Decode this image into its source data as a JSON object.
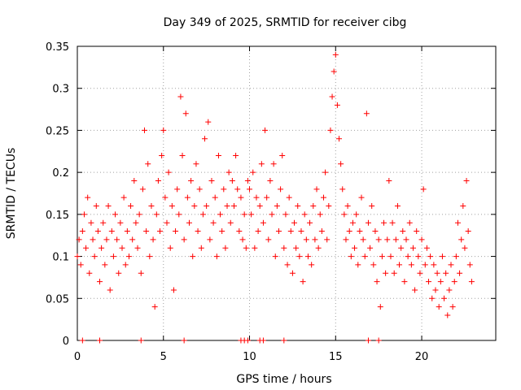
{
  "chart_data": {
    "type": "scatter",
    "title": "Day 349 of 2025, SRMTID for receiver cibg",
    "xlabel": "GPS time / hours",
    "ylabel": "SRMTID / TECUs",
    "xlim": [
      0,
      24.3
    ],
    "ylim": [
      0,
      0.35
    ],
    "grid": true,
    "x_ticks": [
      0,
      5,
      10,
      15,
      20
    ],
    "y_ticks": [
      0,
      0.05,
      0.1,
      0.15,
      0.2,
      0.25,
      0.3,
      0.35
    ],
    "x_tick_labels": [
      "0",
      "5",
      "10",
      "15",
      "20"
    ],
    "y_tick_labels": [
      "0",
      "0.05",
      "0.1",
      "0.15",
      "0.2",
      "0.25",
      "0.3",
      "0.35"
    ],
    "marker": "+",
    "color": "#ff0000",
    "series": [
      {
        "name": "SRMTID",
        "points": [
          [
            0.0,
            0.1
          ],
          [
            0.1,
            0.12
          ],
          [
            0.2,
            0.09
          ],
          [
            0.3,
            0.13
          ],
          [
            0.4,
            0.15
          ],
          [
            0.5,
            0.11
          ],
          [
            0.6,
            0.17
          ],
          [
            0.7,
            0.08
          ],
          [
            0.8,
            0.14
          ],
          [
            0.9,
            0.12
          ],
          [
            1.0,
            0.1
          ],
          [
            1.1,
            0.16
          ],
          [
            1.2,
            0.13
          ],
          [
            1.3,
            0.07
          ],
          [
            1.4,
            0.11
          ],
          [
            1.5,
            0.14
          ],
          [
            1.6,
            0.09
          ],
          [
            1.7,
            0.12
          ],
          [
            1.8,
            0.16
          ],
          [
            1.9,
            0.06
          ],
          [
            2.0,
            0.13
          ],
          [
            2.1,
            0.1
          ],
          [
            2.2,
            0.15
          ],
          [
            2.3,
            0.12
          ],
          [
            2.4,
            0.08
          ],
          [
            2.5,
            0.14
          ],
          [
            2.6,
            0.11
          ],
          [
            2.7,
            0.17
          ],
          [
            2.8,
            0.09
          ],
          [
            2.9,
            0.13
          ],
          [
            3.0,
            0.1
          ],
          [
            3.1,
            0.16
          ],
          [
            3.2,
            0.12
          ],
          [
            3.3,
            0.19
          ],
          [
            3.4,
            0.14
          ],
          [
            3.5,
            0.11
          ],
          [
            3.6,
            0.15
          ],
          [
            3.7,
            0.08
          ],
          [
            3.8,
            0.18
          ],
          [
            3.9,
            0.25
          ],
          [
            4.0,
            0.13
          ],
          [
            4.1,
            0.21
          ],
          [
            4.2,
            0.1
          ],
          [
            4.3,
            0.16
          ],
          [
            4.4,
            0.12
          ],
          [
            4.5,
            0.04
          ],
          [
            4.6,
            0.15
          ],
          [
            4.7,
            0.19
          ],
          [
            4.8,
            0.13
          ],
          [
            4.9,
            0.22
          ],
          [
            5.0,
            0.25
          ],
          [
            5.1,
            0.17
          ],
          [
            5.2,
            0.14
          ],
          [
            5.3,
            0.2
          ],
          [
            5.4,
            0.11
          ],
          [
            5.5,
            0.16
          ],
          [
            5.6,
            0.06
          ],
          [
            5.7,
            0.13
          ],
          [
            5.8,
            0.18
          ],
          [
            5.9,
            0.15
          ],
          [
            6.0,
            0.29
          ],
          [
            6.1,
            0.22
          ],
          [
            6.2,
            0.12
          ],
          [
            6.3,
            0.27
          ],
          [
            6.4,
            0.17
          ],
          [
            6.5,
            0.14
          ],
          [
            6.6,
            0.19
          ],
          [
            6.7,
            0.1
          ],
          [
            6.8,
            0.16
          ],
          [
            6.9,
            0.21
          ],
          [
            7.0,
            0.13
          ],
          [
            7.1,
            0.18
          ],
          [
            7.2,
            0.11
          ],
          [
            7.3,
            0.15
          ],
          [
            7.4,
            0.24
          ],
          [
            7.5,
            0.16
          ],
          [
            7.6,
            0.26
          ],
          [
            7.7,
            0.12
          ],
          [
            7.8,
            0.19
          ],
          [
            7.9,
            0.14
          ],
          [
            8.0,
            0.17
          ],
          [
            8.1,
            0.1
          ],
          [
            8.2,
            0.22
          ],
          [
            8.3,
            0.15
          ],
          [
            8.4,
            0.13
          ],
          [
            8.5,
            0.18
          ],
          [
            8.6,
            0.11
          ],
          [
            8.7,
            0.16
          ],
          [
            8.8,
            0.2
          ],
          [
            8.9,
            0.14
          ],
          [
            9.0,
            0.19
          ],
          [
            9.1,
            0.16
          ],
          [
            9.2,
            0.22
          ],
          [
            9.3,
            0.18
          ],
          [
            9.4,
            0.13
          ],
          [
            9.5,
            0.17
          ],
          [
            9.6,
            0.12
          ],
          [
            9.7,
            0.15
          ],
          [
            9.8,
            0.11
          ],
          [
            9.9,
            0.19
          ],
          [
            10.0,
            0.18
          ],
          [
            10.1,
            0.15
          ],
          [
            10.2,
            0.2
          ],
          [
            10.3,
            0.11
          ],
          [
            10.4,
            0.17
          ],
          [
            10.5,
            0.13
          ],
          [
            10.6,
            0.16
          ],
          [
            10.7,
            0.21
          ],
          [
            10.8,
            0.14
          ],
          [
            10.9,
            0.25
          ],
          [
            11.0,
            0.17
          ],
          [
            11.1,
            0.12
          ],
          [
            11.2,
            0.19
          ],
          [
            11.3,
            0.15
          ],
          [
            11.4,
            0.21
          ],
          [
            11.5,
            0.1
          ],
          [
            11.6,
            0.16
          ],
          [
            11.7,
            0.13
          ],
          [
            11.8,
            0.18
          ],
          [
            11.9,
            0.22
          ],
          [
            12.0,
            0.11
          ],
          [
            12.1,
            0.15
          ],
          [
            12.2,
            0.09
          ],
          [
            12.3,
            0.17
          ],
          [
            12.4,
            0.13
          ],
          [
            12.5,
            0.08
          ],
          [
            12.6,
            0.14
          ],
          [
            12.7,
            0.11
          ],
          [
            12.8,
            0.16
          ],
          [
            12.9,
            0.1
          ],
          [
            13.0,
            0.13
          ],
          [
            13.1,
            0.07
          ],
          [
            13.2,
            0.15
          ],
          [
            13.3,
            0.12
          ],
          [
            13.4,
            0.1
          ],
          [
            13.5,
            0.14
          ],
          [
            13.6,
            0.09
          ],
          [
            13.7,
            0.16
          ],
          [
            13.8,
            0.12
          ],
          [
            13.9,
            0.18
          ],
          [
            14.0,
            0.11
          ],
          [
            14.1,
            0.15
          ],
          [
            14.2,
            0.13
          ],
          [
            14.3,
            0.17
          ],
          [
            14.4,
            0.2
          ],
          [
            14.5,
            0.12
          ],
          [
            14.6,
            0.16
          ],
          [
            14.7,
            0.25
          ],
          [
            14.8,
            0.29
          ],
          [
            14.9,
            0.32
          ],
          [
            15.0,
            0.34
          ],
          [
            15.1,
            0.28
          ],
          [
            15.2,
            0.24
          ],
          [
            15.3,
            0.21
          ],
          [
            15.4,
            0.18
          ],
          [
            15.5,
            0.15
          ],
          [
            15.6,
            0.12
          ],
          [
            15.7,
            0.16
          ],
          [
            15.8,
            0.13
          ],
          [
            15.9,
            0.1
          ],
          [
            16.0,
            0.14
          ],
          [
            16.1,
            0.11
          ],
          [
            16.2,
            0.15
          ],
          [
            16.3,
            0.09
          ],
          [
            16.4,
            0.13
          ],
          [
            16.5,
            0.17
          ],
          [
            16.6,
            0.12
          ],
          [
            16.7,
            0.1
          ],
          [
            16.8,
            0.27
          ],
          [
            16.9,
            0.14
          ],
          [
            17.0,
            0.11
          ],
          [
            17.1,
            0.16
          ],
          [
            17.2,
            0.09
          ],
          [
            17.3,
            0.13
          ],
          [
            17.4,
            0.07
          ],
          [
            17.5,
            0.12
          ],
          [
            17.6,
            0.04
          ],
          [
            17.7,
            0.1
          ],
          [
            17.8,
            0.14
          ],
          [
            17.9,
            0.08
          ],
          [
            18.0,
            0.12
          ],
          [
            18.1,
            0.19
          ],
          [
            18.2,
            0.1
          ],
          [
            18.3,
            0.14
          ],
          [
            18.4,
            0.08
          ],
          [
            18.5,
            0.12
          ],
          [
            18.6,
            0.16
          ],
          [
            18.7,
            0.09
          ],
          [
            18.8,
            0.11
          ],
          [
            18.9,
            0.13
          ],
          [
            19.0,
            0.07
          ],
          [
            19.1,
            0.12
          ],
          [
            19.2,
            0.1
          ],
          [
            19.3,
            0.14
          ],
          [
            19.4,
            0.09
          ],
          [
            19.5,
            0.11
          ],
          [
            19.6,
            0.06
          ],
          [
            19.7,
            0.13
          ],
          [
            19.8,
            0.1
          ],
          [
            19.9,
            0.08
          ],
          [
            20.0,
            0.12
          ],
          [
            20.1,
            0.18
          ],
          [
            20.2,
            0.09
          ],
          [
            20.3,
            0.11
          ],
          [
            20.4,
            0.07
          ],
          [
            20.5,
            0.1
          ],
          [
            20.6,
            0.05
          ],
          [
            20.7,
            0.09
          ],
          [
            20.8,
            0.06
          ],
          [
            20.9,
            0.08
          ],
          [
            21.0,
            0.04
          ],
          [
            21.1,
            0.07
          ],
          [
            21.2,
            0.1
          ],
          [
            21.3,
            0.05
          ],
          [
            21.4,
            0.08
          ],
          [
            21.5,
            0.03
          ],
          [
            21.6,
            0.06
          ],
          [
            21.7,
            0.09
          ],
          [
            21.8,
            0.04
          ],
          [
            21.9,
            0.07
          ],
          [
            22.0,
            0.1
          ],
          [
            22.1,
            0.14
          ],
          [
            22.2,
            0.08
          ],
          [
            22.3,
            0.12
          ],
          [
            22.4,
            0.16
          ],
          [
            22.5,
            0.11
          ],
          [
            22.6,
            0.19
          ],
          [
            22.7,
            0.13
          ],
          [
            22.8,
            0.09
          ],
          [
            22.9,
            0.07
          ]
        ]
      }
    ],
    "zero_points_x": [
      0.3,
      1.3,
      3.7,
      6.2,
      9.5,
      9.7,
      9.9,
      10.6,
      10.8,
      12.0,
      16.9,
      17.5
    ]
  }
}
